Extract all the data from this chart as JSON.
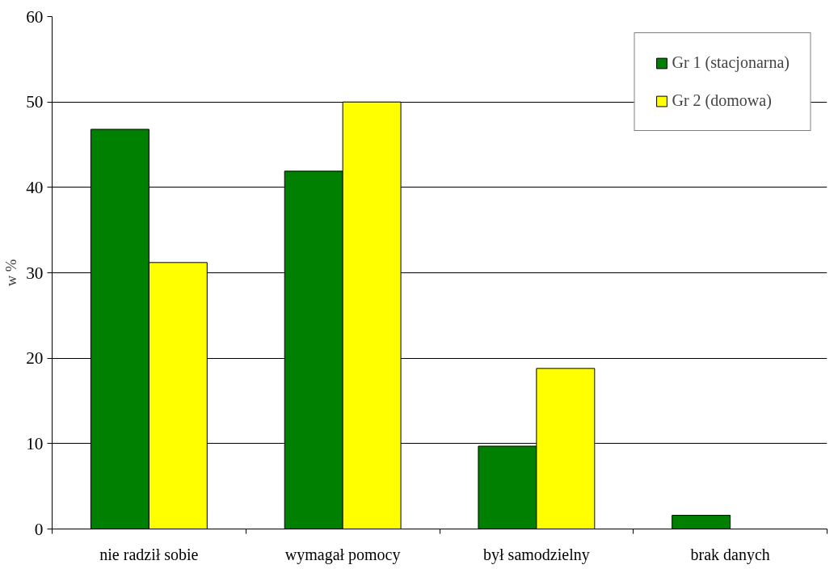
{
  "chart_data": {
    "type": "bar",
    "ylabel": "w %",
    "categories": [
      "nie radził sobie",
      "wymagał pomocy",
      "był samodzielny",
      "brak danych"
    ],
    "series": [
      {
        "name": "Gr 1 (stacjonarna)",
        "color": "#008000",
        "values": [
          46.8,
          41.9,
          9.7,
          1.6
        ]
      },
      {
        "name": "Gr 2 (domowa)",
        "color": "#ffff00",
        "values": [
          31.2,
          50,
          18.8,
          null
        ]
      }
    ],
    "ylim": [
      0,
      60
    ],
    "yticks": [
      0,
      10,
      20,
      30,
      40,
      50,
      60
    ],
    "grid": "y",
    "legend": "top right"
  }
}
